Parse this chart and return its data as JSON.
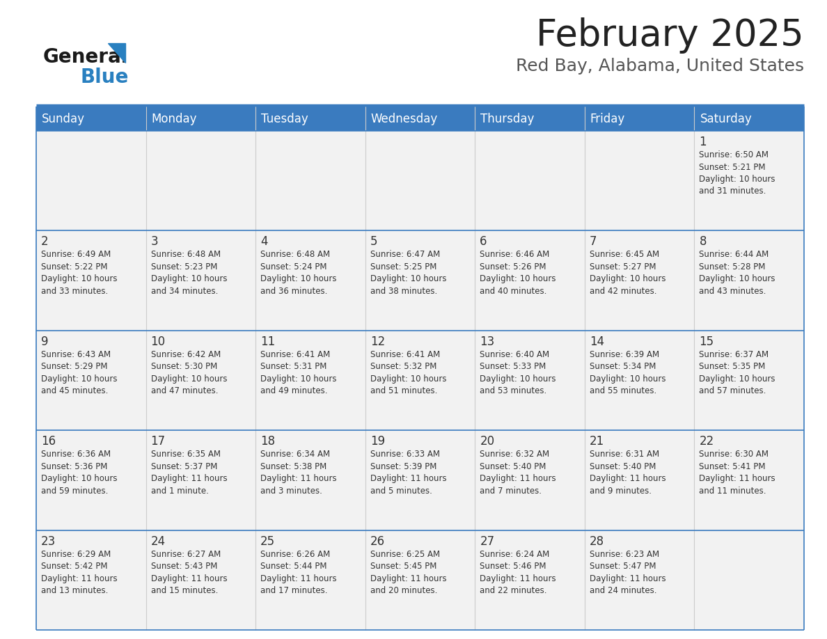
{
  "title": "February 2025",
  "subtitle": "Red Bay, Alabama, United States",
  "days_of_week": [
    "Sunday",
    "Monday",
    "Tuesday",
    "Wednesday",
    "Thursday",
    "Friday",
    "Saturday"
  ],
  "header_bg": "#3a7bbf",
  "header_text": "#ffffff",
  "cell_bg": "#f2f2f2",
  "cell_border_color": "#3a7bbf",
  "grid_line_color": "#cccccc",
  "text_color": "#333333",
  "title_color": "#222222",
  "subtitle_color": "#555555",
  "logo_general_color": "#1a1a1a",
  "logo_blue_color": "#2980c0",
  "logo_triangle_color": "#2980c0",
  "weeks": [
    [
      {
        "day": null,
        "info": null
      },
      {
        "day": null,
        "info": null
      },
      {
        "day": null,
        "info": null
      },
      {
        "day": null,
        "info": null
      },
      {
        "day": null,
        "info": null
      },
      {
        "day": null,
        "info": null
      },
      {
        "day": 1,
        "info": "Sunrise: 6:50 AM\nSunset: 5:21 PM\nDaylight: 10 hours\nand 31 minutes."
      }
    ],
    [
      {
        "day": 2,
        "info": "Sunrise: 6:49 AM\nSunset: 5:22 PM\nDaylight: 10 hours\nand 33 minutes."
      },
      {
        "day": 3,
        "info": "Sunrise: 6:48 AM\nSunset: 5:23 PM\nDaylight: 10 hours\nand 34 minutes."
      },
      {
        "day": 4,
        "info": "Sunrise: 6:48 AM\nSunset: 5:24 PM\nDaylight: 10 hours\nand 36 minutes."
      },
      {
        "day": 5,
        "info": "Sunrise: 6:47 AM\nSunset: 5:25 PM\nDaylight: 10 hours\nand 38 minutes."
      },
      {
        "day": 6,
        "info": "Sunrise: 6:46 AM\nSunset: 5:26 PM\nDaylight: 10 hours\nand 40 minutes."
      },
      {
        "day": 7,
        "info": "Sunrise: 6:45 AM\nSunset: 5:27 PM\nDaylight: 10 hours\nand 42 minutes."
      },
      {
        "day": 8,
        "info": "Sunrise: 6:44 AM\nSunset: 5:28 PM\nDaylight: 10 hours\nand 43 minutes."
      }
    ],
    [
      {
        "day": 9,
        "info": "Sunrise: 6:43 AM\nSunset: 5:29 PM\nDaylight: 10 hours\nand 45 minutes."
      },
      {
        "day": 10,
        "info": "Sunrise: 6:42 AM\nSunset: 5:30 PM\nDaylight: 10 hours\nand 47 minutes."
      },
      {
        "day": 11,
        "info": "Sunrise: 6:41 AM\nSunset: 5:31 PM\nDaylight: 10 hours\nand 49 minutes."
      },
      {
        "day": 12,
        "info": "Sunrise: 6:41 AM\nSunset: 5:32 PM\nDaylight: 10 hours\nand 51 minutes."
      },
      {
        "day": 13,
        "info": "Sunrise: 6:40 AM\nSunset: 5:33 PM\nDaylight: 10 hours\nand 53 minutes."
      },
      {
        "day": 14,
        "info": "Sunrise: 6:39 AM\nSunset: 5:34 PM\nDaylight: 10 hours\nand 55 minutes."
      },
      {
        "day": 15,
        "info": "Sunrise: 6:37 AM\nSunset: 5:35 PM\nDaylight: 10 hours\nand 57 minutes."
      }
    ],
    [
      {
        "day": 16,
        "info": "Sunrise: 6:36 AM\nSunset: 5:36 PM\nDaylight: 10 hours\nand 59 minutes."
      },
      {
        "day": 17,
        "info": "Sunrise: 6:35 AM\nSunset: 5:37 PM\nDaylight: 11 hours\nand 1 minute."
      },
      {
        "day": 18,
        "info": "Sunrise: 6:34 AM\nSunset: 5:38 PM\nDaylight: 11 hours\nand 3 minutes."
      },
      {
        "day": 19,
        "info": "Sunrise: 6:33 AM\nSunset: 5:39 PM\nDaylight: 11 hours\nand 5 minutes."
      },
      {
        "day": 20,
        "info": "Sunrise: 6:32 AM\nSunset: 5:40 PM\nDaylight: 11 hours\nand 7 minutes."
      },
      {
        "day": 21,
        "info": "Sunrise: 6:31 AM\nSunset: 5:40 PM\nDaylight: 11 hours\nand 9 minutes."
      },
      {
        "day": 22,
        "info": "Sunrise: 6:30 AM\nSunset: 5:41 PM\nDaylight: 11 hours\nand 11 minutes."
      }
    ],
    [
      {
        "day": 23,
        "info": "Sunrise: 6:29 AM\nSunset: 5:42 PM\nDaylight: 11 hours\nand 13 minutes."
      },
      {
        "day": 24,
        "info": "Sunrise: 6:27 AM\nSunset: 5:43 PM\nDaylight: 11 hours\nand 15 minutes."
      },
      {
        "day": 25,
        "info": "Sunrise: 6:26 AM\nSunset: 5:44 PM\nDaylight: 11 hours\nand 17 minutes."
      },
      {
        "day": 26,
        "info": "Sunrise: 6:25 AM\nSunset: 5:45 PM\nDaylight: 11 hours\nand 20 minutes."
      },
      {
        "day": 27,
        "info": "Sunrise: 6:24 AM\nSunset: 5:46 PM\nDaylight: 11 hours\nand 22 minutes."
      },
      {
        "day": 28,
        "info": "Sunrise: 6:23 AM\nSunset: 5:47 PM\nDaylight: 11 hours\nand 24 minutes."
      },
      {
        "day": null,
        "info": null
      }
    ]
  ]
}
